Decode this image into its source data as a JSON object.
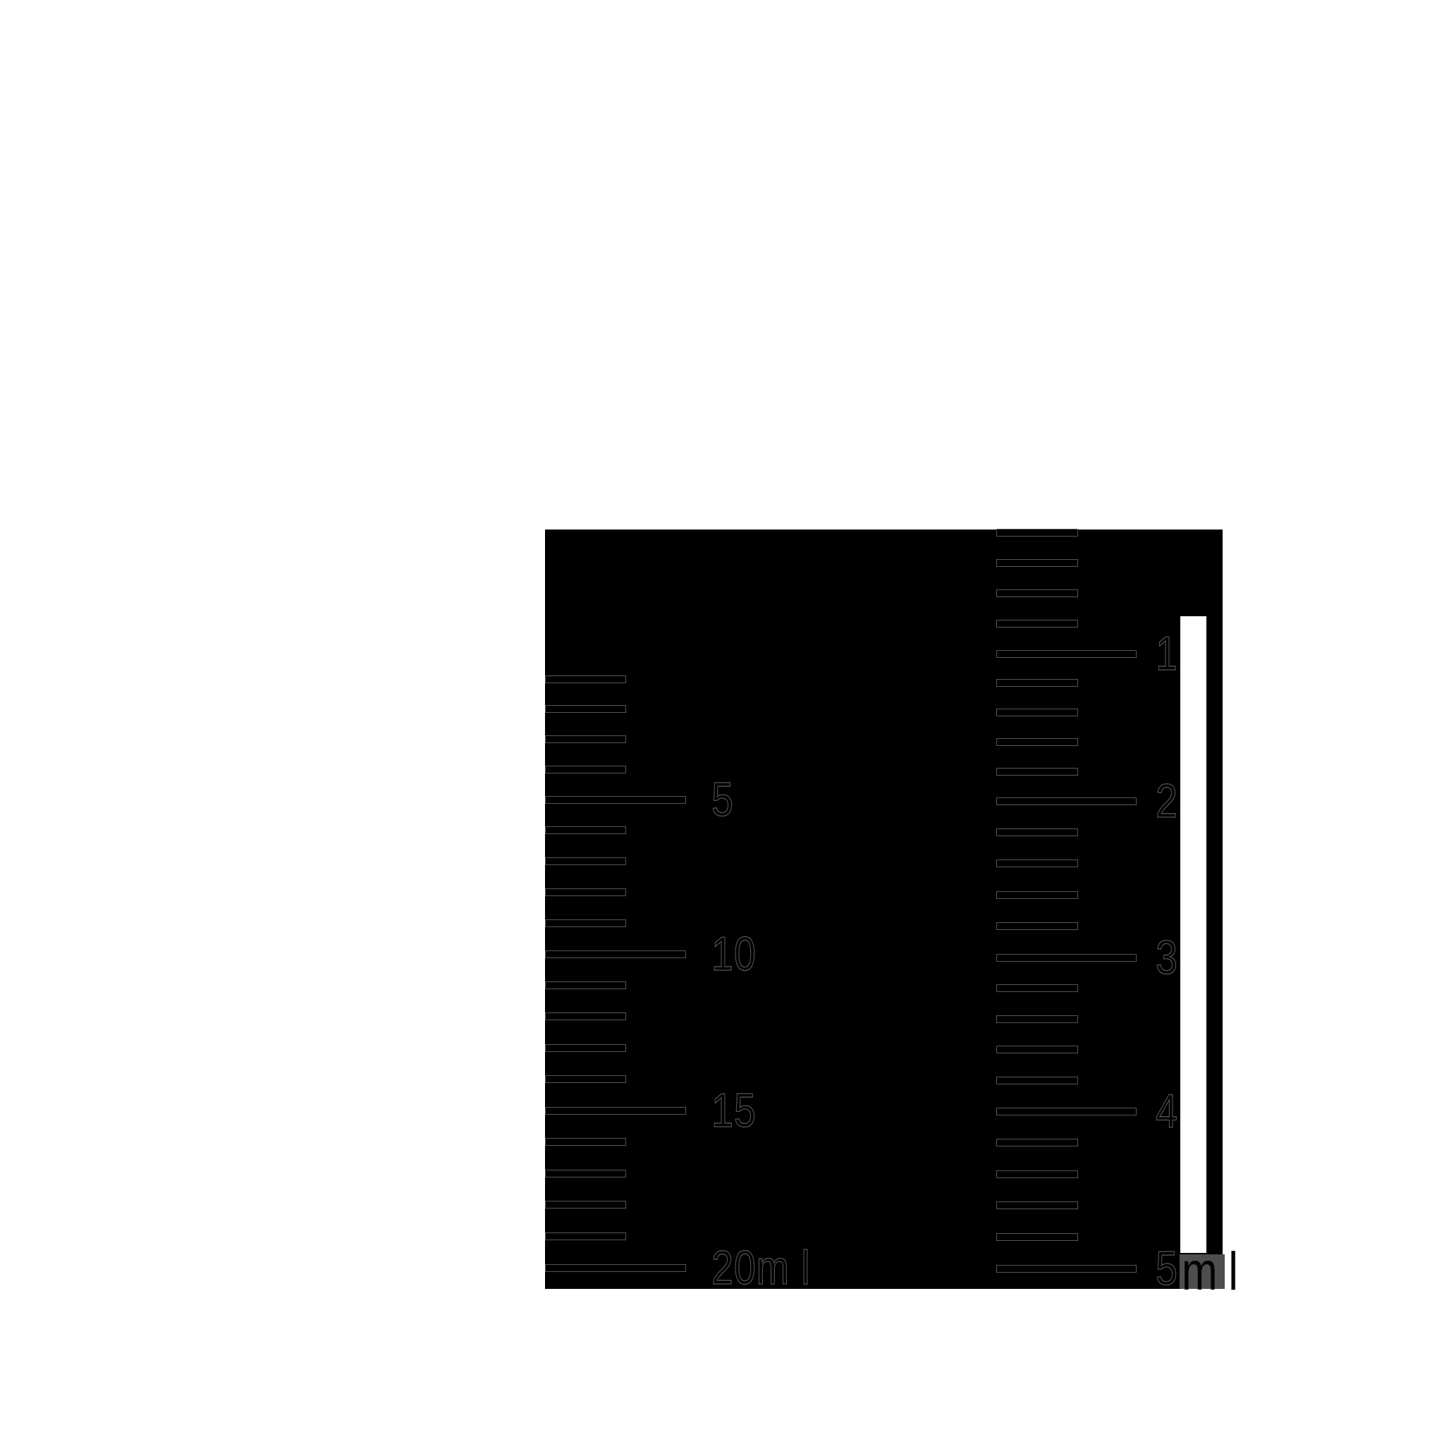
{
  "page": {
    "background": "#ffffff"
  },
  "illustration": {
    "description": "Black panel illustration of two medicine measuring scales: a 20 ml scale and a 5 ml syringe scale with white barrel strip",
    "colors": {
      "panel_fill": "#000000",
      "outline": "#555555",
      "strip_fill": "#ffffff",
      "unit_box_fill": "#4e4e4e",
      "unit_box_text": "#000000"
    }
  },
  "left_scale": {
    "tick_values": [
      1,
      2,
      3,
      4,
      5,
      6,
      7,
      8,
      9,
      10,
      11,
      12,
      13,
      14,
      15,
      16,
      17,
      18,
      19,
      20
    ],
    "major_tick_values": [
      5,
      10,
      15,
      20
    ],
    "labels": [
      {
        "value": 5,
        "text": "5"
      },
      {
        "value": 10,
        "text": "10"
      },
      {
        "value": 15,
        "text": "15"
      },
      {
        "value": 20,
        "text": "20m l"
      }
    ]
  },
  "right_scale": {
    "tick_values": [
      0.2,
      0.4,
      0.6,
      0.8,
      1,
      1.2,
      1.4,
      1.6,
      1.8,
      2,
      2.2,
      2.4,
      2.6,
      2.8,
      3,
      3.2,
      3.4,
      3.6,
      3.8,
      4,
      4.2,
      4.4,
      4.6,
      4.8,
      5
    ],
    "major_tick_values": [
      1,
      2,
      3,
      4,
      5
    ],
    "labels": [
      {
        "value": 1,
        "text": "1"
      },
      {
        "value": 2,
        "text": "2"
      },
      {
        "value": 3,
        "text": "3"
      },
      {
        "value": 4,
        "text": "4"
      },
      {
        "value": 5,
        "text": "5"
      }
    ],
    "unit_box": {
      "m_text": "m",
      "l_text": "l"
    }
  }
}
